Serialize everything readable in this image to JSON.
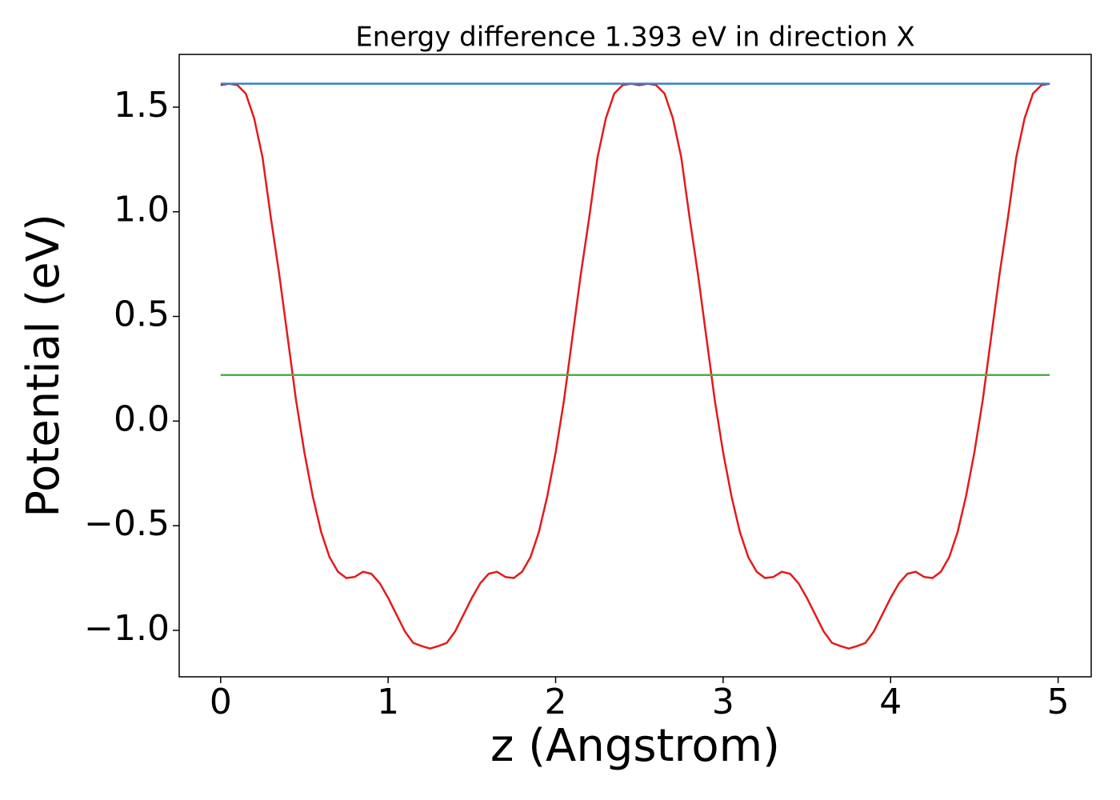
{
  "chart_data": {
    "type": "line",
    "title": "Energy difference 1.393 eV in direction X",
    "xlabel": "z (Angstrom)",
    "ylabel": "Potential (eV)",
    "xlim": [
      -0.2475,
      5.1975
    ],
    "ylim": [
      -1.222,
      1.752
    ],
    "xticks": [
      0,
      1,
      2,
      3,
      4,
      5
    ],
    "yticks": [
      {
        "value": -1.0,
        "label": "−1.0"
      },
      {
        "value": -0.5,
        "label": "−0.5"
      },
      {
        "value": 0.0,
        "label": "0.0"
      },
      0.5,
      {
        "value": 1.0,
        "label": "1.0"
      },
      1.5
    ],
    "series": [
      {
        "color": "#e41a1c",
        "x": [
          0,
          0.05,
          0.1,
          0.15,
          0.2,
          0.25,
          0.3,
          0.35,
          0.4,
          0.45,
          0.5,
          0.55,
          0.6,
          0.65,
          0.7,
          0.75,
          0.8,
          0.85,
          0.9,
          0.95,
          1.0,
          1.05,
          1.1,
          1.15,
          1.2,
          1.25,
          1.3,
          1.35,
          1.4,
          1.45,
          1.5,
          1.55,
          1.6,
          1.65,
          1.7,
          1.75,
          1.8,
          1.85,
          1.9,
          1.95,
          2.0,
          2.05,
          2.1,
          2.15,
          2.2,
          2.25,
          2.3,
          2.35,
          2.4,
          2.45,
          2.5,
          2.55,
          2.6,
          2.65,
          2.7,
          2.75,
          2.8,
          2.85,
          2.9,
          2.95,
          3.0,
          3.05,
          3.1,
          3.15,
          3.2,
          3.25,
          3.3,
          3.35,
          3.4,
          3.45,
          3.5,
          3.55,
          3.6,
          3.65,
          3.7,
          3.75,
          3.8,
          3.85,
          3.9,
          3.95,
          4.0,
          4.05,
          4.1,
          4.15,
          4.2,
          4.25,
          4.3,
          4.35,
          4.4,
          4.45,
          4.5,
          4.55,
          4.6,
          4.65,
          4.7,
          4.75,
          4.8,
          4.85,
          4.9,
          4.95
        ],
        "values": [
          1.605,
          1.612,
          1.605,
          1.565,
          1.447,
          1.26,
          0.97,
          0.7,
          0.4,
          0.1,
          -0.15,
          -0.36,
          -0.53,
          -0.65,
          -0.72,
          -0.75,
          -0.745,
          -0.72,
          -0.73,
          -0.775,
          -0.845,
          -0.925,
          -1.005,
          -1.06,
          -1.075,
          -1.087,
          -1.075,
          -1.06,
          -1.005,
          -0.925,
          -0.845,
          -0.775,
          -0.73,
          -0.72,
          -0.745,
          -0.75,
          -0.72,
          -0.65,
          -0.53,
          -0.36,
          -0.15,
          0.1,
          0.4,
          0.7,
          0.97,
          1.26,
          1.447,
          1.565,
          1.605,
          1.612,
          1.605,
          1.612,
          1.605,
          1.565,
          1.447,
          1.26,
          0.97,
          0.7,
          0.4,
          0.1,
          -0.15,
          -0.36,
          -0.53,
          -0.65,
          -0.72,
          -0.75,
          -0.745,
          -0.72,
          -0.73,
          -0.775,
          -0.845,
          -0.925,
          -1.005,
          -1.06,
          -1.075,
          -1.087,
          -1.075,
          -1.06,
          -1.005,
          -0.925,
          -0.845,
          -0.775,
          -0.73,
          -0.72,
          -0.745,
          -0.75,
          -0.72,
          -0.65,
          -0.53,
          -0.36,
          -0.15,
          0.1,
          0.4,
          0.7,
          0.97,
          1.26,
          1.447,
          1.565,
          1.605,
          1.612
        ]
      },
      {
        "color": "#3a7fc4",
        "x": [
          0,
          4.95
        ],
        "values": [
          1.612,
          1.612
        ]
      },
      {
        "color": "#4daf4a",
        "x": [
          0,
          4.95
        ],
        "values": [
          0.22,
          0.22
        ]
      }
    ]
  }
}
